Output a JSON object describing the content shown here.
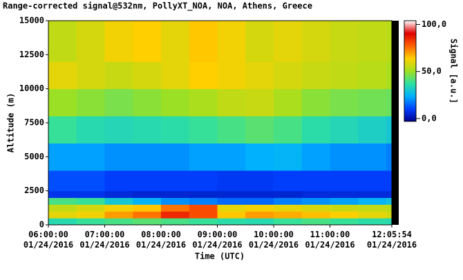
{
  "chart_data": {
    "type": "heatmap",
    "title": "Range-corrected signal@532nm, PollyXT_NOA, NOA, Athens, Greece",
    "xlabel": "Time (UTC)",
    "ylabel": "Altitude (m)",
    "colorbar_label": "Signal [a.u.]",
    "x": [
      6,
      6.5,
      7,
      7.5,
      8,
      8.5,
      9,
      9.5,
      10,
      10.5,
      11,
      11.5,
      12,
      12.0983
    ],
    "y": [
      0,
      500,
      1000,
      1500,
      2000,
      2500,
      4000,
      6000,
      8000,
      10000,
      12000,
      15000
    ],
    "values": [
      [
        35,
        38,
        40,
        42,
        40,
        38,
        36,
        35,
        38,
        40,
        38,
        36,
        35
      ],
      [
        60,
        62,
        70,
        75,
        85,
        80,
        65,
        70,
        68,
        66,
        64,
        60,
        58
      ],
      [
        55,
        58,
        62,
        65,
        75,
        80,
        60,
        62,
        60,
        58,
        56,
        55,
        54
      ],
      [
        40,
        38,
        30,
        25,
        20,
        18,
        15,
        15,
        18,
        20,
        22,
        25,
        28
      ],
      [
        8,
        8,
        6,
        5,
        5,
        5,
        5,
        5,
        5,
        6,
        6,
        6,
        6
      ],
      [
        12,
        12,
        10,
        10,
        10,
        10,
        9,
        9,
        10,
        10,
        10,
        10,
        10
      ],
      [
        22,
        22,
        20,
        20,
        20,
        22,
        22,
        24,
        25,
        22,
        20,
        20,
        18
      ],
      [
        38,
        35,
        34,
        35,
        36,
        38,
        40,
        42,
        40,
        36,
        34,
        32,
        30
      ],
      [
        50,
        48,
        46,
        48,
        50,
        52,
        55,
        56,
        52,
        48,
        46,
        45,
        44
      ],
      [
        60,
        58,
        56,
        58,
        60,
        64,
        62,
        60,
        58,
        56,
        55,
        54,
        52
      ],
      [
        55,
        58,
        62,
        64,
        60,
        65,
        62,
        58,
        60,
        58,
        56,
        55,
        54
      ]
    ],
    "xlim": [
      6,
      12.0983
    ],
    "xticks": [
      {
        "value": 6,
        "label": "06:00:00 01/24/2016"
      },
      {
        "value": 7,
        "label": "07:00:00 01/24/2016"
      },
      {
        "value": 8,
        "label": "08:00:00 01/24/2016"
      },
      {
        "value": 9,
        "label": "09:00:00 01/24/2016"
      },
      {
        "value": 10,
        "label": "10:00:00 01/24/2016"
      },
      {
        "value": 11,
        "label": "11:00:00 01/24/2016"
      },
      {
        "value": 12.0983,
        "label": "12:05:54 01/24/2016"
      }
    ],
    "ylim": [
      0,
      15000
    ],
    "yticks": [
      0,
      2500,
      5000,
      7500,
      10000,
      12500,
      15000
    ],
    "zlim": [
      -3,
      104
    ],
    "zticks": [
      {
        "value": 0,
        "label": "0,0"
      },
      {
        "value": 50,
        "label": "50,0"
      },
      {
        "value": 100,
        "label": "100,0"
      }
    ],
    "colormap": [
      "#000090",
      "#0040ff",
      "#00b0ff",
      "#30e0a0",
      "#a0e020",
      "#ffd000",
      "#ff6000",
      "#e00000",
      "#ffffff"
    ]
  }
}
